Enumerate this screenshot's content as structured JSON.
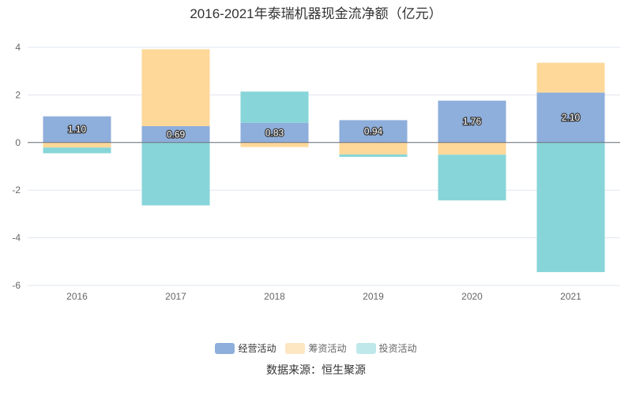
{
  "chart_data": {
    "type": "bar",
    "stacked": true,
    "title": "2016-2021年泰瑞机器现金流净额（亿元）",
    "categories": [
      "2016",
      "2017",
      "2018",
      "2019",
      "2020",
      "2021"
    ],
    "series": [
      {
        "name": "经营活动",
        "color": "#8eaedb",
        "values": [
          1.1,
          0.69,
          0.83,
          0.94,
          1.76,
          2.1
        ],
        "labels": [
          "1.10",
          "0.69",
          "0.83",
          "0.94",
          "1.76",
          "2.10"
        ]
      },
      {
        "name": "筹资活动",
        "color": "#fed899",
        "values": [
          -0.21,
          3.23,
          -0.19,
          -0.5,
          -0.51,
          1.25
        ]
      },
      {
        "name": "投资活动",
        "color": "#87d5d8",
        "values": [
          -0.24,
          -2.64,
          1.31,
          -0.1,
          -1.92,
          -5.44
        ]
      }
    ],
    "yticks": [
      "4",
      "2",
      "0",
      "-2",
      "-4",
      "-6"
    ],
    "ylim": [
      -6,
      4
    ],
    "grid": true,
    "legend_position": "bottom"
  },
  "source": "数据来源：恒生聚源"
}
